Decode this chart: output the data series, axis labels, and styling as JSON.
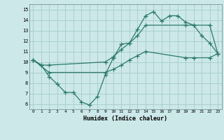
{
  "title": "",
  "xlabel": "Humidex (Indice chaleur)",
  "xlim": [
    -0.5,
    23.5
  ],
  "ylim": [
    5.5,
    15.5
  ],
  "xticks": [
    0,
    1,
    2,
    3,
    4,
    5,
    6,
    7,
    8,
    9,
    10,
    11,
    12,
    13,
    14,
    15,
    16,
    17,
    18,
    19,
    20,
    21,
    22,
    23
  ],
  "yticks": [
    6,
    7,
    8,
    9,
    10,
    11,
    12,
    13,
    14,
    15
  ],
  "bg_color": "#cce8e8",
  "grid_color": "#aacece",
  "line_color": "#2a7a6a",
  "line1_x": [
    0,
    1,
    2,
    3,
    4,
    5,
    6,
    7,
    8,
    9,
    10,
    11,
    12,
    13,
    14,
    15,
    16,
    17,
    18,
    19,
    20,
    21,
    22,
    23
  ],
  "line1_y": [
    10.2,
    9.7,
    8.6,
    7.9,
    7.1,
    7.1,
    6.2,
    5.9,
    6.7,
    8.8,
    10.4,
    11.7,
    11.8,
    13.1,
    14.4,
    14.8,
    13.9,
    14.4,
    14.4,
    13.8,
    13.5,
    12.5,
    11.8,
    10.8
  ],
  "line2_x": [
    0,
    1,
    2,
    9,
    10,
    11,
    12,
    13,
    14,
    19,
    20,
    22,
    23
  ],
  "line2_y": [
    10.2,
    9.7,
    9.7,
    10.0,
    10.5,
    11.2,
    11.8,
    12.5,
    13.5,
    13.5,
    13.5,
    13.5,
    10.8
  ],
  "line3_x": [
    0,
    2,
    9,
    10,
    11,
    12,
    13,
    14,
    19,
    20,
    22,
    23
  ],
  "line3_y": [
    10.2,
    9.0,
    9.0,
    9.3,
    9.7,
    10.2,
    10.6,
    11.0,
    10.4,
    10.4,
    10.4,
    10.8
  ]
}
